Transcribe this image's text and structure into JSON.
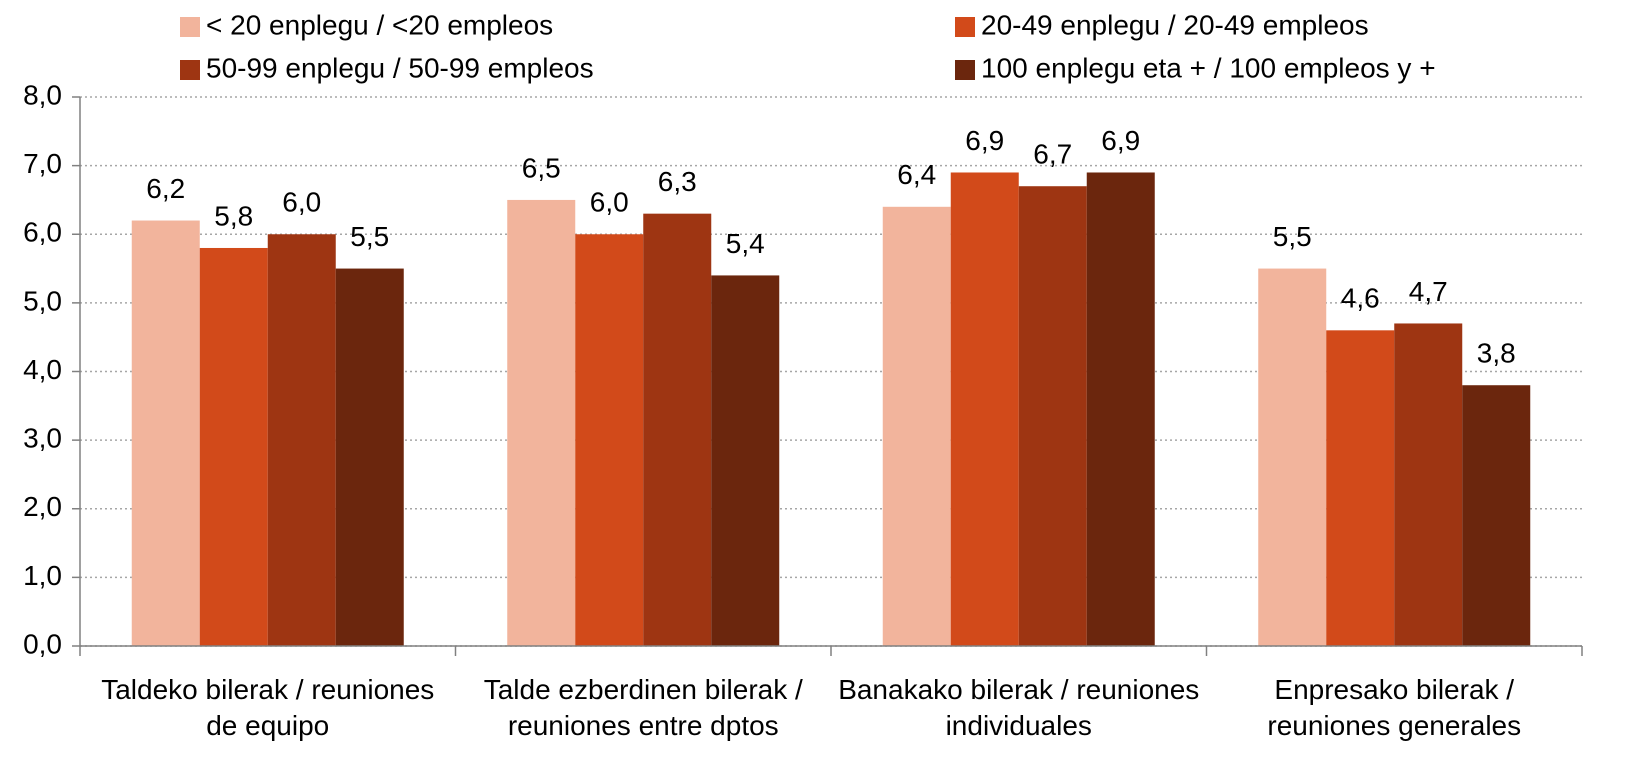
{
  "chart_data": {
    "type": "bar",
    "categories": [
      "Taldeko bilerak / reuniones de equipo",
      "Talde ezberdinen bilerak / reuniones entre dptos",
      "Banakako bilerak / reuniones individuales",
      "Enpresako bilerak / reuniones generales"
    ],
    "series": [
      {
        "name": "< 20 enplegu / <20 empleos",
        "color": "#f2b49c",
        "values": [
          6.2,
          6.5,
          6.4,
          5.5
        ],
        "value_labels": [
          "6,2",
          "6,5",
          "6,4",
          "5,5"
        ]
      },
      {
        "name": "20-49 enplegu / 20-49 empleos",
        "color": "#d24a1a",
        "values": [
          5.8,
          6.0,
          6.9,
          4.6
        ],
        "value_labels": [
          "5,8",
          "6,0",
          "6,9",
          "4,6"
        ]
      },
      {
        "name": "50-99 enplegu / 50-99 empleos",
        "color": "#9e3512",
        "values": [
          6.0,
          6.3,
          6.7,
          4.7
        ],
        "value_labels": [
          "6,0",
          "6,3",
          "6,7",
          "4,7"
        ]
      },
      {
        "name": "100 enplegu eta + / 100 empleos y +",
        "color": "#6b260d",
        "values": [
          5.5,
          5.4,
          6.9,
          3.8
        ],
        "value_labels": [
          "5,5",
          "5,4",
          "6,9",
          "3,8"
        ]
      }
    ],
    "ylim": [
      0,
      8
    ],
    "yticks": [
      {
        "value": 0,
        "label": "0,0"
      },
      {
        "value": 1,
        "label": "1,0"
      },
      {
        "value": 2,
        "label": "2,0"
      },
      {
        "value": 3,
        "label": "3,0"
      },
      {
        "value": 4,
        "label": "4,0"
      },
      {
        "value": 5,
        "label": "5,0"
      },
      {
        "value": 6,
        "label": "6,0"
      },
      {
        "value": 7,
        "label": "7,0"
      },
      {
        "value": 8,
        "label": "8,0"
      }
    ],
    "grid": true,
    "legend": "top"
  }
}
